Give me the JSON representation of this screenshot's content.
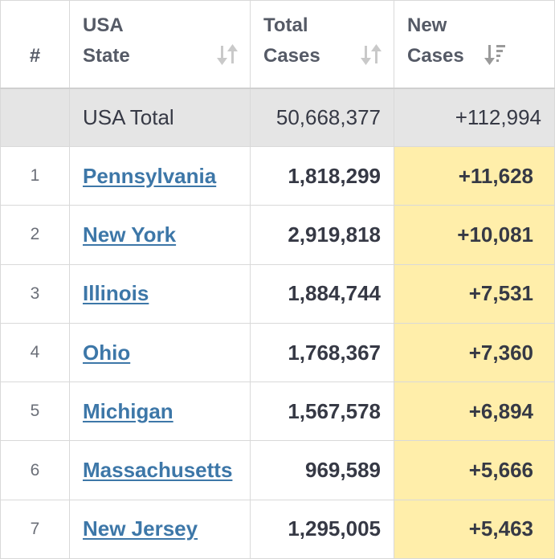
{
  "table": {
    "headers": {
      "rank": "#",
      "state_line1": "USA",
      "state_line2": "State",
      "total_line1": "Total",
      "total_line2": "Cases",
      "new_line1": "New",
      "new_line2": "Cases"
    },
    "sort_icons": {
      "state": "sort-both-icon",
      "total": "sort-both-icon",
      "new": "sort-descending-icon"
    },
    "total_row": {
      "label": "USA Total",
      "total_cases": "50,668,377",
      "new_cases": "+112,994"
    },
    "rows": [
      {
        "rank": "1",
        "state": "Pennsylvania",
        "total_cases": "1,818,299",
        "new_cases": "+11,628"
      },
      {
        "rank": "2",
        "state": "New York",
        "total_cases": "2,919,818",
        "new_cases": "+10,081"
      },
      {
        "rank": "3",
        "state": "Illinois",
        "total_cases": "1,884,744",
        "new_cases": "+7,531"
      },
      {
        "rank": "4",
        "state": "Ohio",
        "total_cases": "1,768,367",
        "new_cases": "+7,360"
      },
      {
        "rank": "5",
        "state": "Michigan",
        "total_cases": "1,567,578",
        "new_cases": "+6,894"
      },
      {
        "rank": "6",
        "state": "Massachusetts",
        "total_cases": "969,589",
        "new_cases": "+5,666"
      },
      {
        "rank": "7",
        "state": "New Jersey",
        "total_cases": "1,295,005",
        "new_cases": "+5,463"
      }
    ],
    "colors": {
      "link": "#3d77a8",
      "new_cases_highlight": "#ffeeaa",
      "total_row_bg": "#e5e5e5",
      "border": "#d9d9d9"
    }
  }
}
